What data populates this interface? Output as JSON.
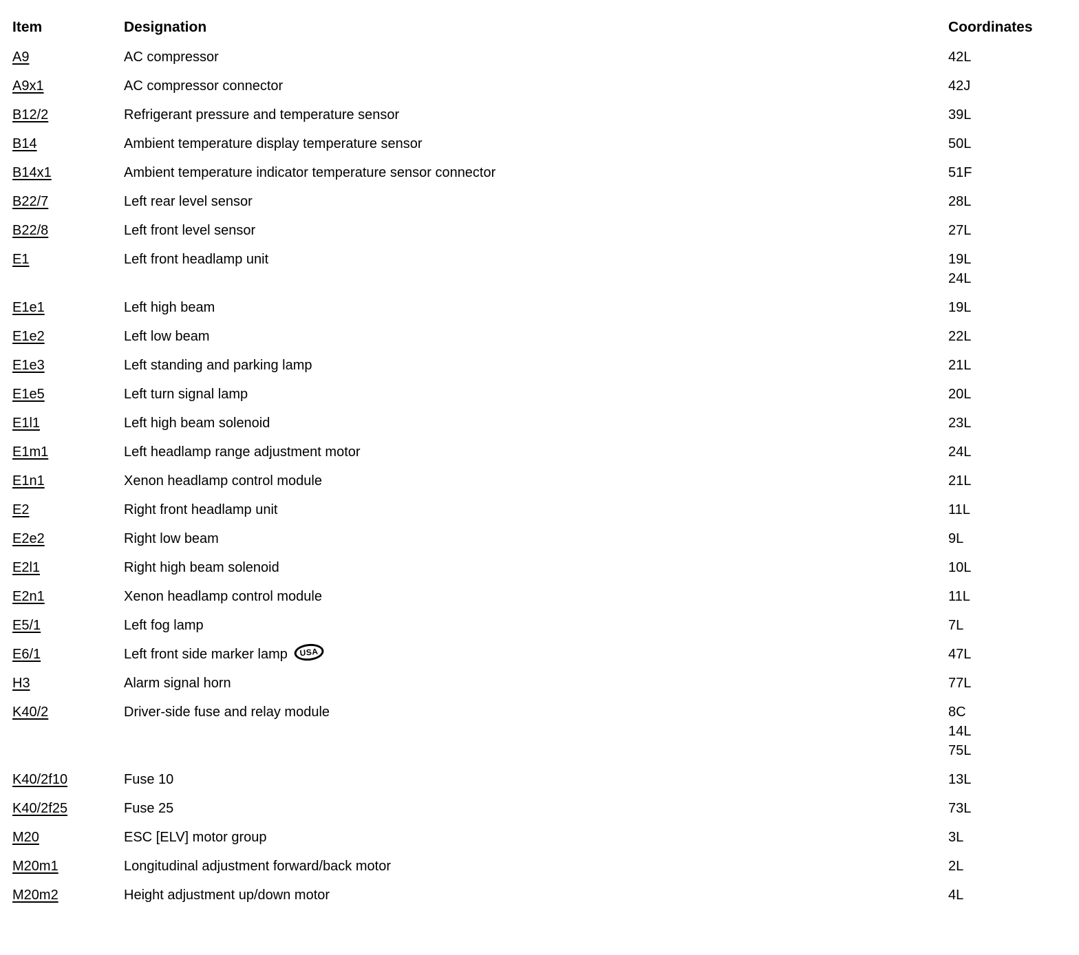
{
  "table": {
    "headers": {
      "item": "Item",
      "designation": "Designation",
      "coordinates": "Coordinates"
    },
    "rows": [
      {
        "item": "A9",
        "designation": "AC compressor",
        "coordinates": [
          "42L"
        ]
      },
      {
        "item": "A9x1",
        "designation": "AC compressor connector",
        "coordinates": [
          "42J"
        ]
      },
      {
        "item": "B12/2",
        "designation": "Refrigerant pressure and temperature sensor",
        "coordinates": [
          "39L"
        ]
      },
      {
        "item": "B14",
        "designation": "Ambient temperature display temperature sensor",
        "coordinates": [
          "50L"
        ]
      },
      {
        "item": "B14x1",
        "designation": "Ambient temperature indicator temperature sensor connector",
        "coordinates": [
          "51F"
        ]
      },
      {
        "item": "B22/7",
        "designation": "Left rear level sensor",
        "coordinates": [
          "28L"
        ]
      },
      {
        "item": "B22/8",
        "designation": "Left front level sensor",
        "coordinates": [
          "27L"
        ]
      },
      {
        "item": "E1",
        "designation": "Left front headlamp unit",
        "coordinates": [
          "19L",
          "24L"
        ]
      },
      {
        "item": "E1e1",
        "designation": "Left high beam",
        "coordinates": [
          "19L"
        ]
      },
      {
        "item": "E1e2",
        "designation": "Left low beam",
        "coordinates": [
          "22L"
        ]
      },
      {
        "item": "E1e3",
        "designation": "Left standing and parking lamp",
        "coordinates": [
          "21L"
        ]
      },
      {
        "item": "E1e5",
        "designation": "Left turn signal lamp",
        "coordinates": [
          "20L"
        ]
      },
      {
        "item": "E1l1",
        "designation": "Left high beam solenoid",
        "coordinates": [
          "23L"
        ]
      },
      {
        "item": "E1m1",
        "designation": "Left headlamp range adjustment motor",
        "coordinates": [
          "24L"
        ]
      },
      {
        "item": "E1n1",
        "designation": "Xenon headlamp control module",
        "coordinates": [
          "21L"
        ]
      },
      {
        "item": "E2",
        "designation": "Right front headlamp unit",
        "coordinates": [
          "11L"
        ]
      },
      {
        "item": "E2e2",
        "designation": "Right low beam",
        "coordinates": [
          "9L"
        ]
      },
      {
        "item": "E2l1",
        "designation": "Right high beam solenoid",
        "coordinates": [
          "10L"
        ]
      },
      {
        "item": "E2n1",
        "designation": "Xenon headlamp control module",
        "coordinates": [
          "11L"
        ]
      },
      {
        "item": "E5/1",
        "designation": "Left fog lamp",
        "coordinates": [
          "7L"
        ]
      },
      {
        "item": "E6/1",
        "designation": "Left front side marker lamp",
        "badge": "USA",
        "coordinates": [
          "47L"
        ]
      },
      {
        "item": "H3",
        "designation": "Alarm signal horn",
        "coordinates": [
          "77L"
        ]
      },
      {
        "item": "K40/2",
        "designation": "Driver-side fuse and relay module",
        "coordinates": [
          "8C",
          "14L",
          "75L"
        ]
      },
      {
        "item": "K40/2f10",
        "designation": "Fuse 10",
        "coordinates": [
          "13L"
        ]
      },
      {
        "item": "K40/2f25",
        "designation": "Fuse 25",
        "coordinates": [
          "73L"
        ]
      },
      {
        "item": "M20",
        "designation": "ESC [ELV] motor group",
        "coordinates": [
          "3L"
        ]
      },
      {
        "item": "M20m1",
        "designation": "Longitudinal adjustment forward/back motor",
        "coordinates": [
          "2L"
        ]
      },
      {
        "item": "M20m2",
        "designation": "Height adjustment up/down motor",
        "coordinates": [
          "4L"
        ]
      }
    ]
  }
}
